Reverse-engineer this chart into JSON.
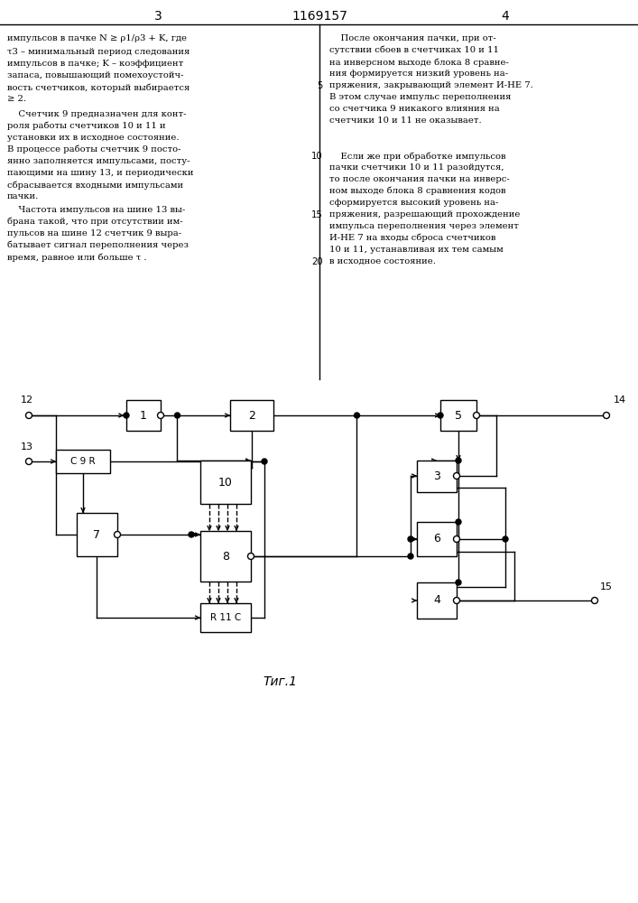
{
  "bg_color": "#ffffff",
  "line_color": "#000000",
  "title": "1169157",
  "page_left": "3",
  "page_right": "4",
  "fig_label": "Τиг.1",
  "lw": 1.0,
  "dot_r": 3.0,
  "circle_r": 3.5,
  "text_left_lines": [
    [
      8,
      38,
      "импульсов в пачке N ≥ ρ1/ρ3 + K, где"
    ],
    [
      8,
      53,
      "τ3 – минимальный период следования"
    ],
    [
      8,
      66,
      "импульсов в пачке; K – коэффициент"
    ],
    [
      8,
      79,
      "запаса, повышающий помехоустойч-"
    ],
    [
      8,
      92,
      "вость счетчиков, который выбирается"
    ],
    [
      8,
      105,
      "≥ 2."
    ],
    [
      8,
      122,
      "    Счетчик 9 предназначен для конт-"
    ],
    [
      8,
      135,
      "роля работы счетчиков 10 и 11 и"
    ],
    [
      8,
      148,
      "установки их в исходное состояние."
    ],
    [
      8,
      161,
      "В процессе работы счетчик 9 посто-"
    ],
    [
      8,
      174,
      "янно заполняется импульсами, посту-"
    ],
    [
      8,
      187,
      "пающими на шину 13, и периодически"
    ],
    [
      8,
      200,
      "сбрасывается входными импульсами"
    ],
    [
      8,
      213,
      "пачки."
    ],
    [
      8,
      228,
      "    Частота импульсов на шине 13 вы-"
    ],
    [
      8,
      241,
      "брана такой, что при отсутствии им-"
    ],
    [
      8,
      254,
      "пульсов на шине 12 счетчик 9 выра-"
    ],
    [
      8,
      267,
      "батывает сигнал переполнения через"
    ],
    [
      8,
      280,
      "время, равное или больше τ ."
    ]
  ],
  "text_right_lines": [
    [
      365,
      38,
      "    После окончания пачки, при от-"
    ],
    [
      365,
      51,
      "сутствии сбоев в счетчиках 10 и 11"
    ],
    [
      365,
      64,
      "на инверсном выходе блока 8 сравне-"
    ],
    [
      365,
      77,
      "ния формируется низкий уровень на-"
    ],
    [
      365,
      90,
      "пряжения, закрывающий элемент И-НЕ 7."
    ],
    [
      365,
      103,
      "В этом случае импульс переполнения"
    ],
    [
      365,
      116,
      "со счетчика 9 никакого влияния на"
    ],
    [
      365,
      129,
      "счетчики 10 и 11 не оказывает."
    ],
    [
      365,
      168,
      "    Если же при обработке импульсов"
    ],
    [
      365,
      181,
      "пачки счетчики 10 и 11 разойдутся,"
    ],
    [
      365,
      194,
      "то после окончания пачки на инверс-"
    ],
    [
      365,
      207,
      "ном выходе блока 8 сравнения кодов"
    ],
    [
      365,
      220,
      "сформируется высокий уровень на-"
    ],
    [
      365,
      233,
      "пряжения, разрешающий прохождение"
    ],
    [
      365,
      246,
      "импульса переполнения через элемент"
    ],
    [
      365,
      259,
      "И-НЕ 7 на входы сброса счетчиков"
    ],
    [
      365,
      272,
      "10 и 11, устанавливая их тем самым"
    ],
    [
      365,
      285,
      "в исходное состояние."
    ]
  ],
  "line_numbers": [
    [
      358,
      90,
      "5"
    ],
    [
      358,
      168,
      "10"
    ],
    [
      358,
      233,
      "15"
    ],
    [
      358,
      285,
      "20"
    ]
  ]
}
